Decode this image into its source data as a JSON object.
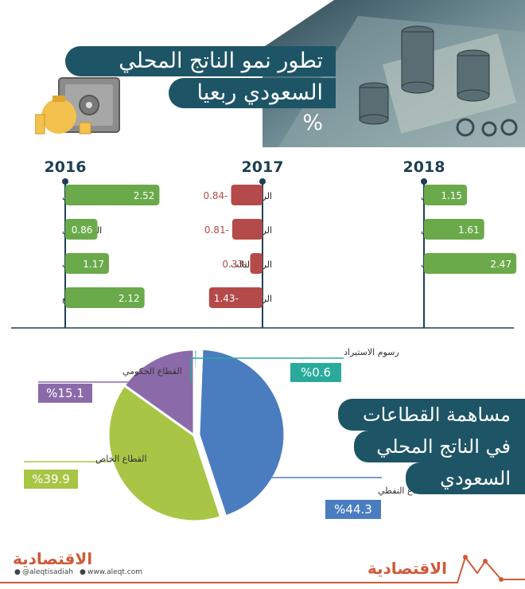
{
  "header": {
    "title_line1": "تطور نمو الناتج المحلي",
    "title_line2": "السعودي ربعيا %"
  },
  "colors": {
    "navy": "#1e5566",
    "green": "#6aaa4a",
    "red": "#b54a4a",
    "axis": "#1e3f52",
    "oil": "#4a7dc0",
    "private": "#a8c545",
    "government": "#8b6aaa",
    "import": "#2aaa9a"
  },
  "chart_data": [
    {
      "type": "bar",
      "title": "2016",
      "categories": [
        "الربع الأول",
        "الربع الثاني",
        "الربع الثالث",
        "الربع الرابع"
      ],
      "values": [
        2.52,
        0.86,
        1.17,
        2.12
      ],
      "labels": [
        "2.52",
        "0.86",
        "1.17",
        "2.12"
      ]
    },
    {
      "type": "bar",
      "title": "2017",
      "categories": [
        "الربع الأول",
        "الربع الثاني",
        "الربع الثالث",
        "الربع الرابع"
      ],
      "values": [
        -0.84,
        -0.81,
        -0.33,
        -1.43
      ],
      "labels": [
        "0.84-",
        "0.81-",
        "0.33-",
        "1.43-"
      ]
    },
    {
      "type": "bar",
      "title": "2018",
      "categories": [
        "الربع الأول",
        "الربع الثاني",
        "الربع الثالث"
      ],
      "values": [
        1.15,
        1.61,
        2.47
      ],
      "labels": [
        "1.15",
        "1.61",
        "2.47"
      ]
    },
    {
      "type": "pie",
      "title": "مساهمة القطاعات في الناتج المحلي السعودي",
      "categories": [
        "القطاع النفطي",
        "القطاع الخاص",
        "القطاع الحكومي",
        "رسوم الاستيراد"
      ],
      "values": [
        44.3,
        39.9,
        15.1,
        0.6
      ],
      "labels": [
        "%44.3",
        "%39.9",
        "%15.1",
        "%0.6"
      ]
    }
  ],
  "sectors": {
    "title_line1": "مساهمة القطاعات",
    "title_line2": "في الناتج المحلي",
    "title_line3": "السعودي"
  },
  "footer": {
    "logo": "الاقتصادية",
    "twitter": "@aleqtisadiah",
    "website": "www.aleqt.com",
    "logo_right": "الاقتصادية"
  }
}
